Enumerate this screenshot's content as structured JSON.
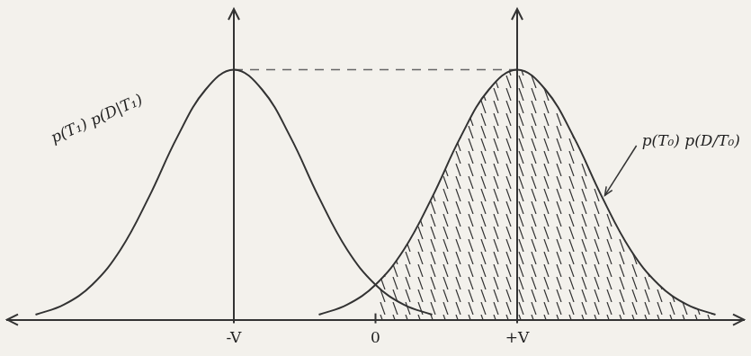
{
  "chart_data": {
    "type": "line",
    "xlim": [
      -2.6,
      2.6
    ],
    "xticks": [
      {
        "value": -1,
        "label": "-V"
      },
      0,
      {
        "value": 1,
        "label": "+V"
      }
    ],
    "ylim": [
      0,
      1.25
    ],
    "grid": false,
    "tick_labels": "x",
    "series": [
      {
        "name": "p(T₁) p(D|T₁)",
        "color": "#333333",
        "x": [
          -2.4,
          -2.2,
          -2.0,
          -1.8,
          -1.6,
          -1.4,
          -1.2,
          -1.0,
          -0.8,
          -0.6,
          -0.4,
          -0.2,
          0.0,
          0.2,
          0.4
        ],
        "values": [
          0.02,
          0.06,
          0.14,
          0.28,
          0.49,
          0.73,
          0.92,
          1.0,
          0.92,
          0.73,
          0.49,
          0.28,
          0.14,
          0.06,
          0.02
        ]
      },
      {
        "name": "p(T₀) p(D/T₀)",
        "color": "#333333",
        "x": [
          -0.4,
          -0.2,
          0.0,
          0.2,
          0.4,
          0.6,
          0.8,
          1.0,
          1.2,
          1.4,
          1.6,
          1.8,
          2.0,
          2.2,
          2.4
        ],
        "values": [
          0.02,
          0.06,
          0.14,
          0.28,
          0.49,
          0.73,
          0.92,
          1.0,
          0.92,
          0.73,
          0.49,
          0.28,
          0.14,
          0.06,
          0.02
        ],
        "shaded_from": 0
      }
    ]
  }
}
